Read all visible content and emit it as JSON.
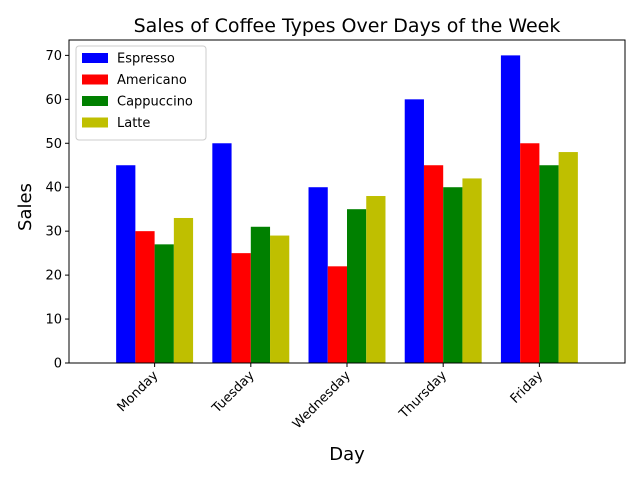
{
  "chart_data": {
    "type": "bar",
    "title": "Sales of Coffee Types Over Days of the Week",
    "xlabel": "Day",
    "ylabel": "Sales",
    "categories": [
      "Monday",
      "Tuesday",
      "Wednesday",
      "Thursday",
      "Friday"
    ],
    "series": [
      {
        "name": "Espresso",
        "color": "#0000ff",
        "values": [
          45,
          50,
          40,
          60,
          70
        ]
      },
      {
        "name": "Americano",
        "color": "#ff0000",
        "values": [
          30,
          25,
          22,
          45,
          50
        ]
      },
      {
        "name": "Cappuccino",
        "color": "#008000",
        "values": [
          27,
          31,
          35,
          40,
          45
        ]
      },
      {
        "name": "Latte",
        "color": "#bfbf00",
        "values": [
          33,
          29,
          38,
          42,
          48
        ]
      }
    ],
    "ylim": [
      0,
      73.5
    ],
    "yticks": [
      "0",
      "10",
      "20",
      "30",
      "40",
      "50",
      "60",
      "70"
    ],
    "grid": false,
    "legend_position": "top-left",
    "xtick_rotation": 45
  }
}
